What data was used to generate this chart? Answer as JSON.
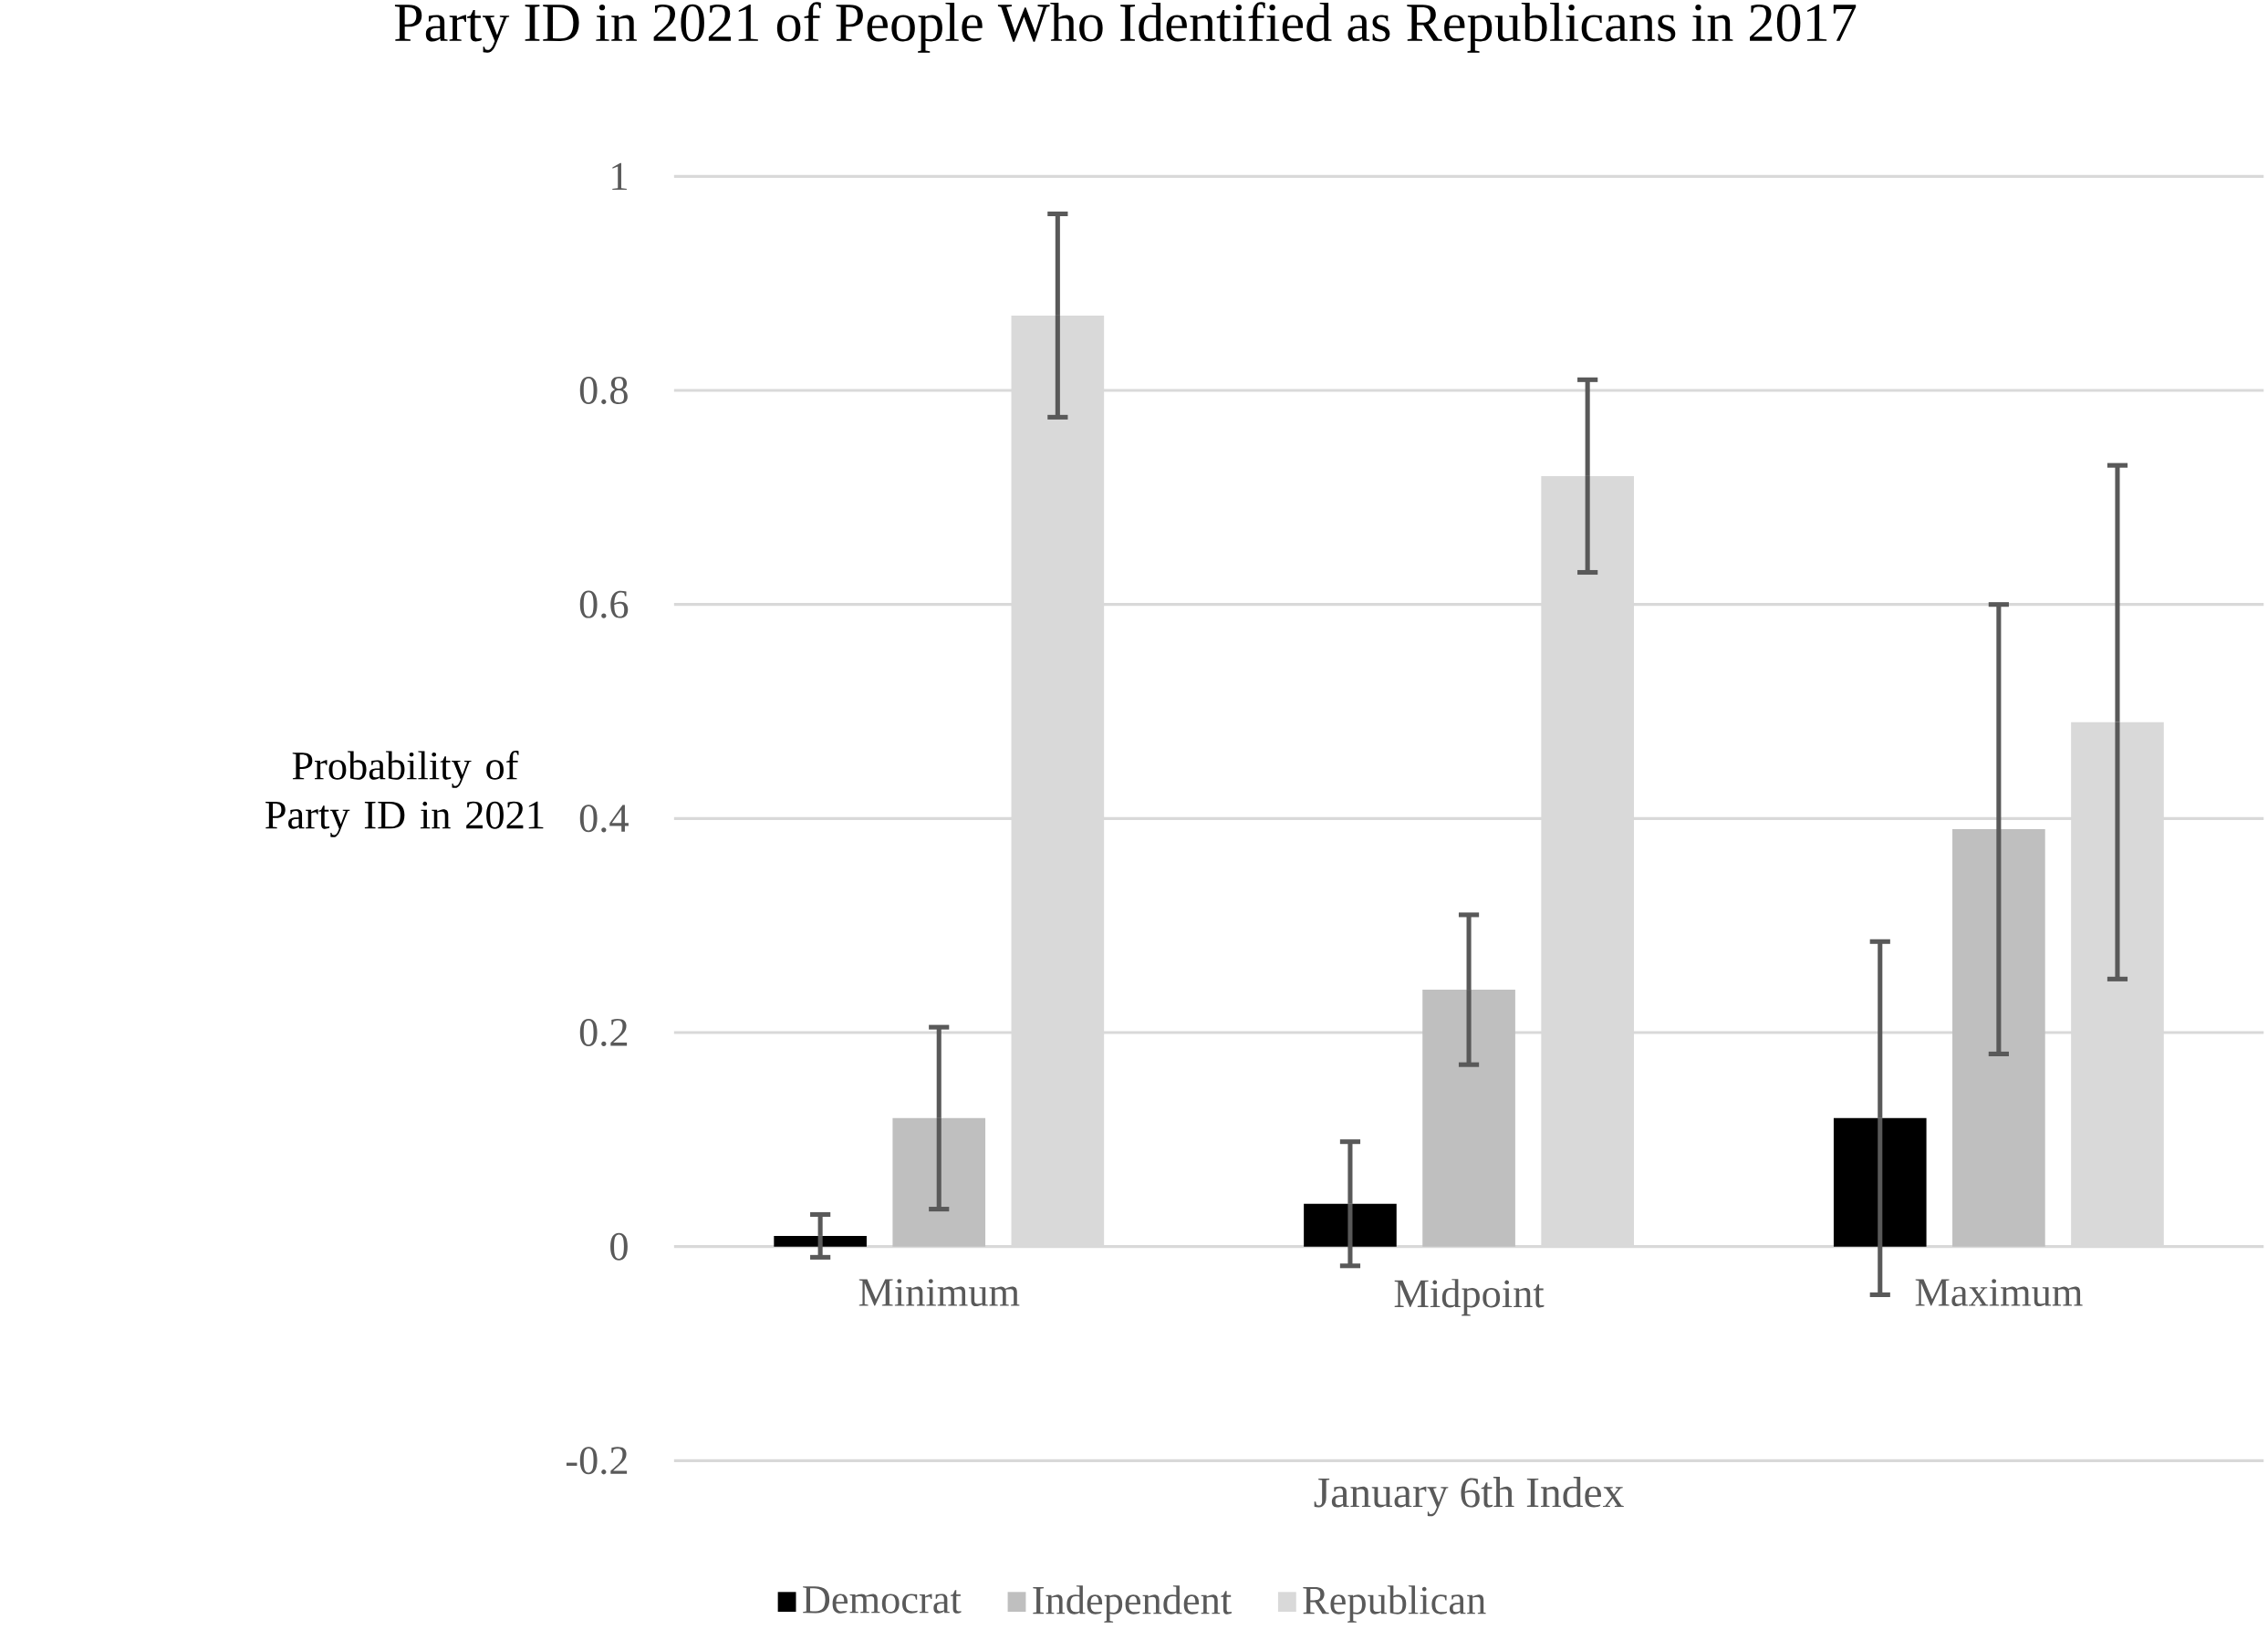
{
  "chart_data": {
    "type": "bar",
    "title": "Party ID in 2021 of People Who Identified as Republicans in 2017",
    "xlabel": "January 6th Index",
    "ylabel": "Probability of Party ID in 2021",
    "categories": [
      "Minimum",
      "Midpoint",
      "Maximum"
    ],
    "series": [
      {
        "name": "Democrat",
        "color": "#000000",
        "values": [
          0.01,
          0.04,
          0.12
        ],
        "errors": [
          0.02,
          0.058,
          0.165
        ]
      },
      {
        "name": "Independent",
        "color": "#bfbfbf",
        "values": [
          0.12,
          0.24,
          0.39
        ],
        "errors": [
          0.085,
          0.07,
          0.21
        ]
      },
      {
        "name": "Republican",
        "color": "#d9d9d9",
        "values": [
          0.87,
          0.72,
          0.49
        ],
        "errors": [
          0.095,
          0.09,
          0.24
        ]
      }
    ],
    "ylim": [
      -0.2,
      1
    ],
    "yticks": [
      -0.2,
      0,
      0.2,
      0.4,
      0.6,
      0.8,
      1
    ],
    "grid": "y",
    "legend": "bottom"
  }
}
